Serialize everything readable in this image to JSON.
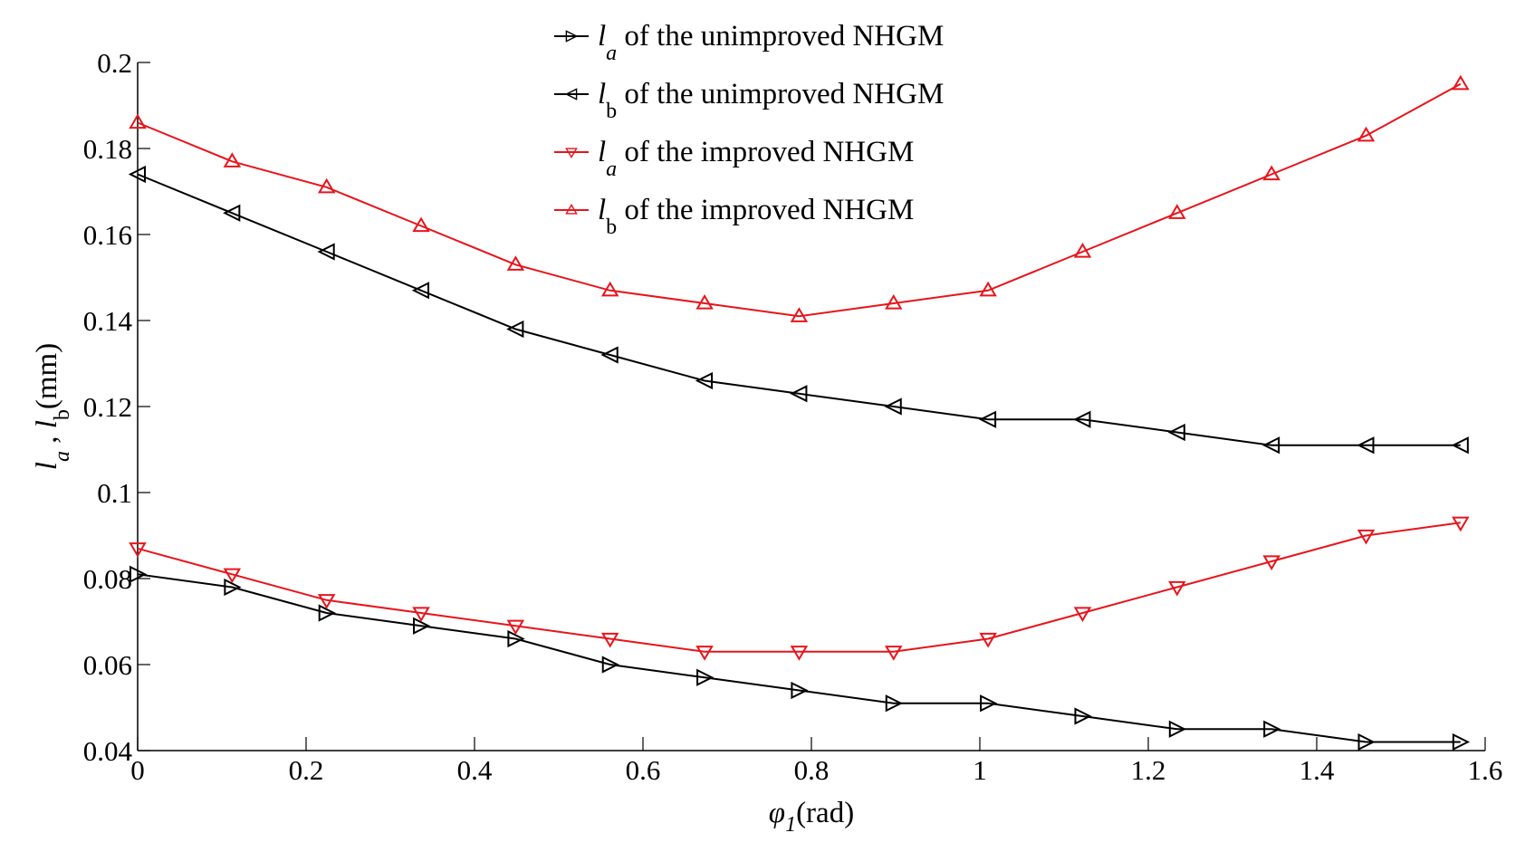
{
  "chart_data": {
    "type": "line",
    "title": "",
    "xlabel": {
      "symbol": "φ",
      "subscript": "1",
      "unit": "(rad)"
    },
    "ylabel": {
      "a": "l",
      "a_sub": "a",
      "sep": " , ",
      "b": "l",
      "b_sub": "b",
      "unit": "(mm)"
    },
    "xlim": [
      0,
      1.6
    ],
    "ylim": [
      0.04,
      0.2
    ],
    "xticks": [
      0,
      0.2,
      0.4,
      0.6,
      0.8,
      1,
      1.2,
      1.4,
      1.6
    ],
    "xtick_labels": [
      "0",
      "0.2",
      "0.4",
      "0.6",
      "0.8",
      "1",
      "1.2",
      "1.4",
      "1.6"
    ],
    "yticks": [
      0.04,
      0.06,
      0.08,
      0.1,
      0.12,
      0.14,
      0.16,
      0.18,
      0.2
    ],
    "ytick_labels": [
      "0.04",
      "0.06",
      "0.08",
      "0.1",
      "0.12",
      "0.14",
      "0.16",
      "0.18",
      "0.2"
    ],
    "grid": false,
    "legend_position": "top-center",
    "x": [
      0,
      0.1122,
      0.2244,
      0.3366,
      0.4488,
      0.561,
      0.6732,
      0.7854,
      0.8976,
      1.0098,
      1.122,
      1.2342,
      1.3464,
      1.4586,
      1.5708
    ],
    "series": [
      {
        "name": "la of the unimproved NHGM",
        "legend": {
          "sym": "l",
          "sub": "a",
          "text": "of the unimproved NHGM"
        },
        "color": "#000000",
        "marker": "triangle-right",
        "values": [
          0.081,
          0.078,
          0.072,
          0.069,
          0.066,
          0.06,
          0.057,
          0.054,
          0.051,
          0.051,
          0.048,
          0.045,
          0.045,
          0.042,
          0.042
        ]
      },
      {
        "name": "lb of the unimproved NHGM",
        "legend": {
          "sym": "l",
          "sub": "b",
          "text": "of the unimproved NHGM"
        },
        "color": "#000000",
        "marker": "triangle-left",
        "values": [
          0.174,
          0.165,
          0.156,
          0.147,
          0.138,
          0.132,
          0.126,
          0.123,
          0.12,
          0.117,
          0.117,
          0.114,
          0.111,
          0.111,
          0.111
        ]
      },
      {
        "name": "la of the improved NHGM",
        "legend": {
          "sym": "l",
          "sub": "a",
          "text": "of the improved NHGM"
        },
        "color": "#e8141b",
        "marker": "triangle-down",
        "values": [
          0.087,
          0.081,
          0.075,
          0.072,
          0.069,
          0.066,
          0.063,
          0.063,
          0.063,
          0.066,
          0.072,
          0.078,
          0.084,
          0.09,
          0.093
        ]
      },
      {
        "name": "lb of the improved NHGM",
        "legend": {
          "sym": "l",
          "sub": "b",
          "text": "of the improved NHGM"
        },
        "color": "#e8141b",
        "marker": "triangle-up",
        "values": [
          0.186,
          0.177,
          0.171,
          0.162,
          0.153,
          0.147,
          0.144,
          0.141,
          0.144,
          0.147,
          0.156,
          0.165,
          0.174,
          0.183,
          0.195
        ]
      }
    ]
  }
}
